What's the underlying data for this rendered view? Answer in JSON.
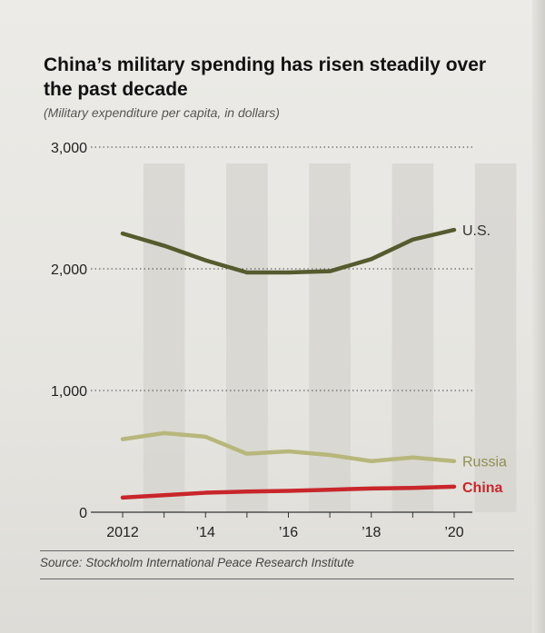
{
  "title": "China’s military spending has risen steadily over the past decade",
  "subtitle": "(Military expenditure per capita, in dollars)",
  "source": "Source: Stockholm International Peace Research Institute",
  "chart_data": {
    "type": "line",
    "title": "China’s military spending has risen steadily over the past decade",
    "subtitle": "(Military expenditure per capita, in dollars)",
    "x": [
      2012,
      2013,
      2014,
      2015,
      2016,
      2017,
      2018,
      2019,
      2020
    ],
    "x_tick_values": [
      2012,
      2014,
      2016,
      2018,
      2020
    ],
    "x_tick_labels": [
      "2012",
      "’14",
      "’16",
      "’18",
      "’20"
    ],
    "y_tick_values": [
      0,
      1000,
      2000,
      3000
    ],
    "y_tick_labels": [
      "0",
      "1,000",
      "2,000",
      "3,000"
    ],
    "ylim": [
      0,
      3000
    ],
    "xlim": [
      2012,
      2020
    ],
    "grid": "dotted horizontal",
    "series": [
      {
        "name": "U.S.",
        "color": "#555b2e",
        "values": [
          2290,
          2190,
          2070,
          1970,
          1970,
          1980,
          2080,
          2240,
          2320
        ]
      },
      {
        "name": "Russia",
        "color": "#b7b77c",
        "values": [
          600,
          650,
          620,
          480,
          500,
          470,
          420,
          450,
          420
        ]
      },
      {
        "name": "China",
        "color": "#c8262b",
        "values": [
          120,
          140,
          160,
          170,
          175,
          185,
          195,
          200,
          210
        ]
      }
    ]
  }
}
